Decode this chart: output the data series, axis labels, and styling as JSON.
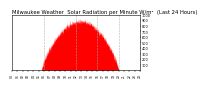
{
  "title": "Milwaukee Weather  Solar Radiation per Minute W/m²  (Last 24 Hours)",
  "title_fontsize": 3.8,
  "background_color": "#ffffff",
  "plot_bg_color": "#ffffff",
  "bar_color": "#ff0000",
  "grid_color": "#aaaaaa",
  "ylim": [
    0,
    1000
  ],
  "yticks": [
    100,
    200,
    300,
    400,
    500,
    600,
    700,
    800,
    900,
    1000
  ],
  "ylabel_fontsize": 2.5,
  "xlabel_fontsize": 2.2,
  "num_points": 1440,
  "peak": 880,
  "peak_noise": 100,
  "start_hour": 5.5,
  "end_hour": 20.0,
  "peak_hour": 12.5,
  "num_xticks": 24,
  "grid_xticks": [
    6,
    12,
    16,
    20
  ],
  "border_color": "#000000"
}
